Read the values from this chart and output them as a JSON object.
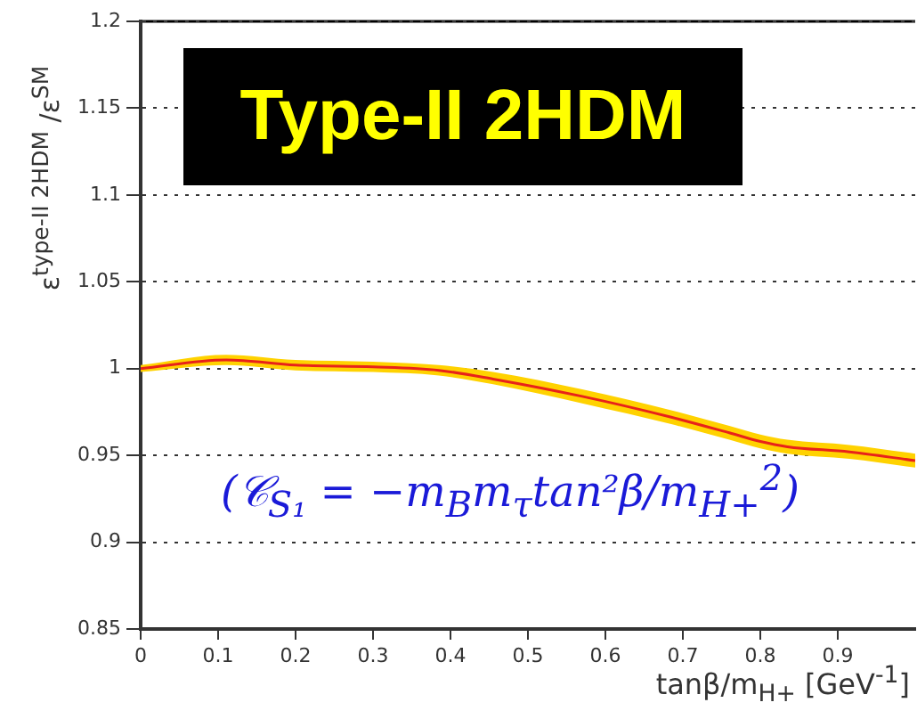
{
  "chart_data": {
    "type": "line",
    "title": "Type-II 2HDM",
    "xlabel": "tanβ/m$_{H+}$ [GeV$^{-1}$]",
    "ylabel": "ε$^{type-II 2HDM}$ /ε$^{SM}$",
    "annotations": [
      "(𝒞$_{S₁}$ = −m$_{B}$m$_{τ}$tan²β/m$_{H+}$$^{2}$)"
    ],
    "x": [
      0,
      0.11,
      0.2,
      0.3,
      0.385,
      0.455,
      0.57,
      0.685,
      0.76,
      0.8,
      0.835,
      0.915,
      1.0
    ],
    "series": [
      {
        "color": "#e8221a",
        "values": [
          1.0,
          1.005,
          1.002,
          1.001,
          0.999,
          0.994,
          0.984,
          0.972,
          0.963,
          0.958,
          0.955,
          0.952,
          0.947
        ],
        "lower": [
          0.998,
          1.002,
          0.999,
          0.998,
          0.996,
          0.991,
          0.98,
          0.968,
          0.959,
          0.954,
          0.951,
          0.948,
          0.943
        ],
        "upper": [
          1.002,
          1.008,
          1.005,
          1.004,
          1.002,
          0.998,
          0.988,
          0.976,
          0.967,
          0.962,
          0.959,
          0.956,
          0.951
        ]
      }
    ],
    "xlim": [
      0,
      1
    ],
    "xticks": [
      0,
      0.1,
      0.2,
      0.3,
      0.4,
      0.5,
      0.6,
      0.7,
      0.8,
      0.9
    ],
    "ylim": [
      0.85,
      1.2
    ],
    "yticks": [
      0.85,
      0.9,
      0.95,
      1,
      1.05,
      1.1,
      1.15,
      1.2
    ],
    "grid": "y",
    "legend": false,
    "marker": "none",
    "line_style": "solid"
  }
}
